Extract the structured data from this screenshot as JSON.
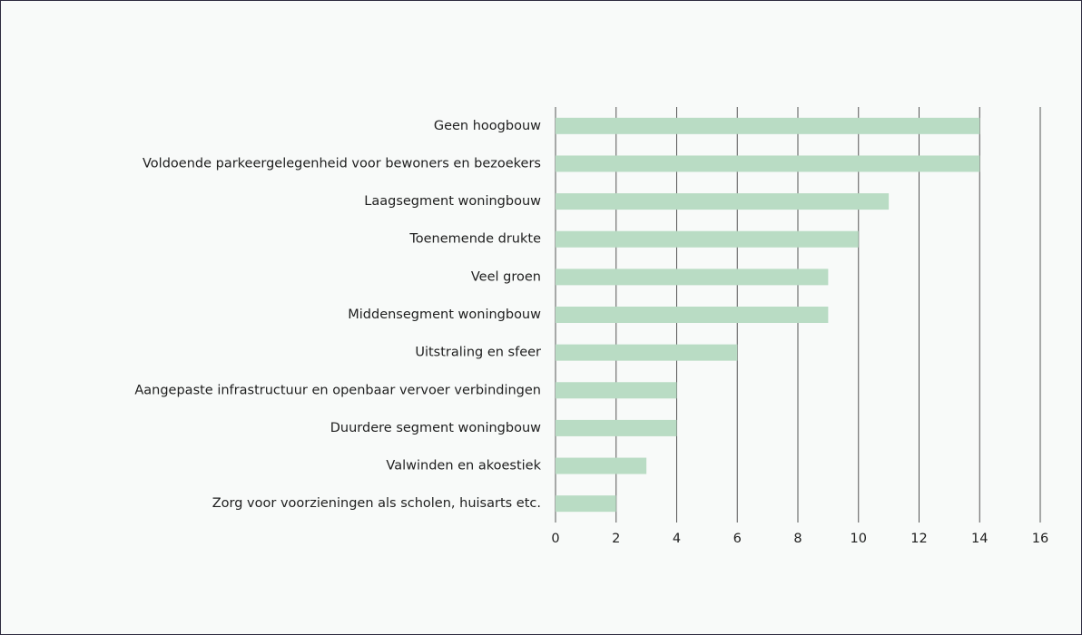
{
  "chart_data": {
    "type": "bar",
    "categories": [
      "Geen hoogbouw",
      "Voldoende parkeergelegenheid voor bewoners en bezoekers",
      "Laagsegment woningbouw",
      "Toenemende drukte",
      "Veel groen",
      "Middensegment woningbouw",
      "Uitstraling en sfeer",
      "Aangepaste infrastructuur en openbaar vervoer verbindingen",
      "Duurdere segment woningbouw",
      "Valwinden en akoestiek",
      "Zorg voor voorzieningen als scholen, huisarts etc."
    ],
    "values": [
      14,
      14,
      11,
      10,
      9,
      9,
      6,
      4,
      4,
      3,
      2
    ],
    "color": "#b9dcc4",
    "xlim": [
      0,
      16
    ],
    "xticks": [
      0,
      2,
      4,
      6,
      8,
      10,
      12,
      14,
      16
    ],
    "grid": true
  }
}
